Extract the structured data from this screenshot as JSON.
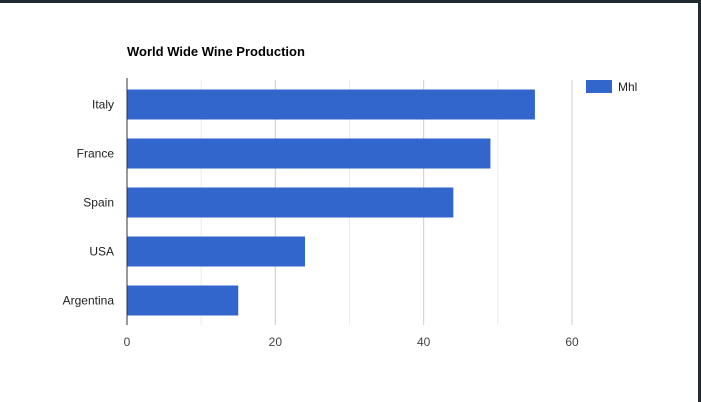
{
  "colors": {
    "series": "#3366cc",
    "grid": "#cccccc",
    "axis": "#333333"
  },
  "chart_data": {
    "type": "bar",
    "orientation": "horizontal",
    "title": "World Wide Wine Production",
    "categories": [
      "Italy",
      "France",
      "Spain",
      "USA",
      "Argentina"
    ],
    "series": [
      {
        "name": "Mhl",
        "values": [
          55,
          49,
          44,
          24,
          15
        ]
      }
    ],
    "xlim": [
      0,
      70
    ],
    "xticks": [
      0,
      20,
      40,
      60
    ],
    "grid": true,
    "legend_position": "right"
  }
}
